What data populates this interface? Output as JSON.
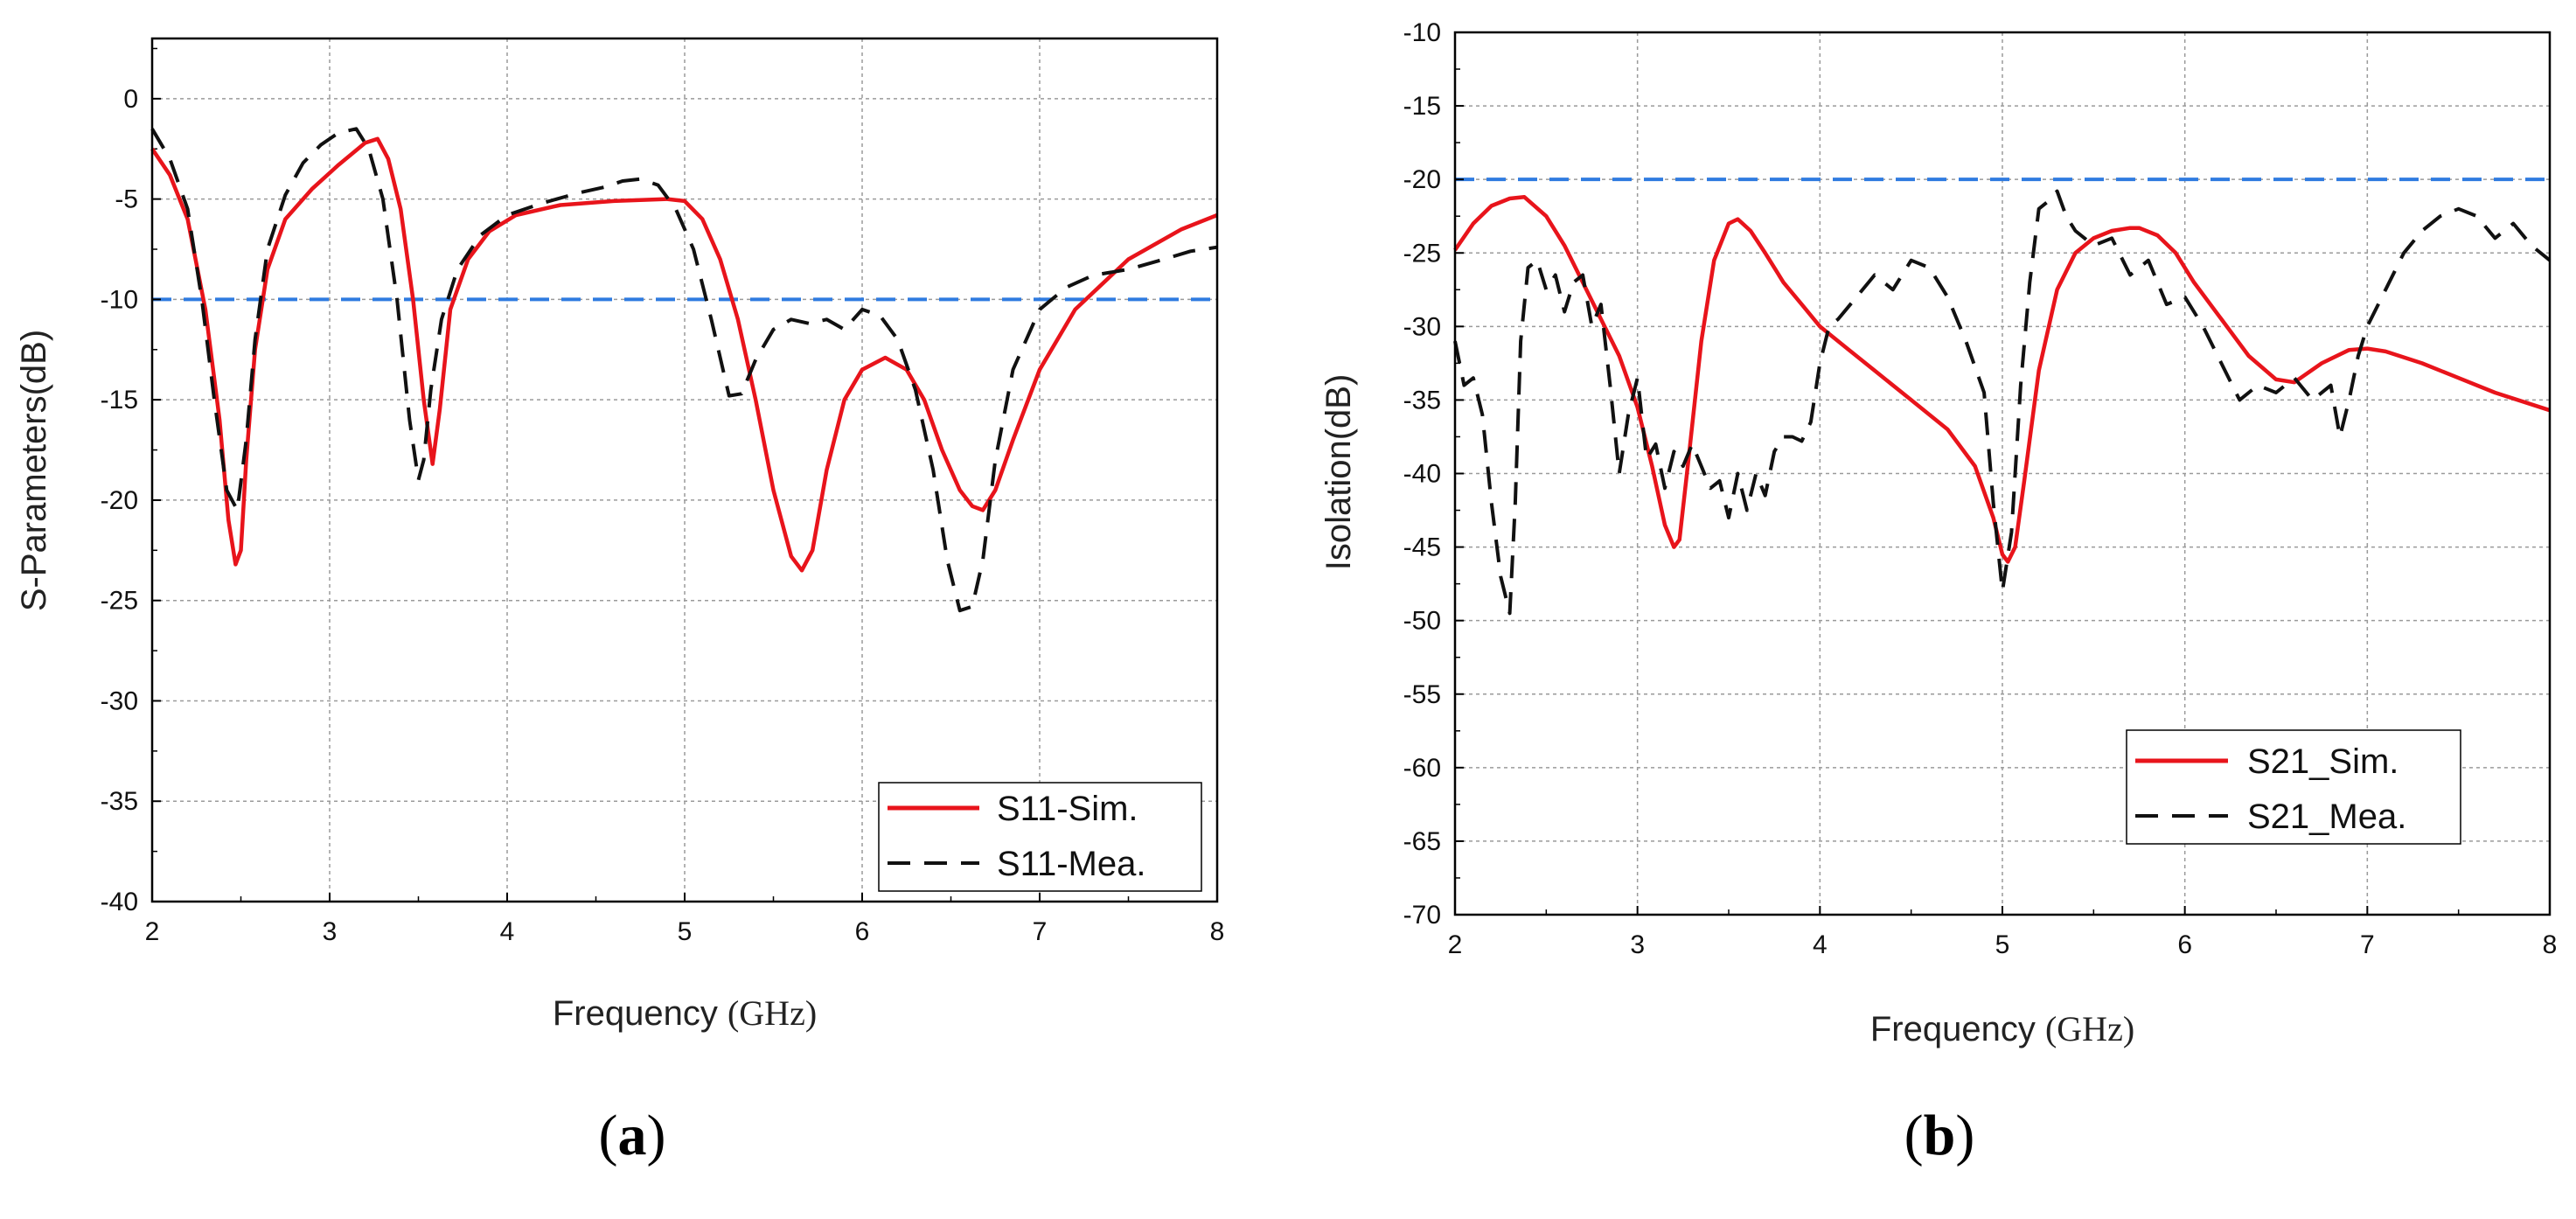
{
  "chart_data": [
    {
      "type": "line",
      "panel": "a",
      "panel_label": "a",
      "xlabel": "Frequency",
      "xunit": "(GHz)",
      "ylabel": "S-Parameters(dB)",
      "xlim": [
        2,
        8
      ],
      "ylim": [
        -40,
        3
      ],
      "xticks": [
        2,
        3,
        4,
        5,
        6,
        7,
        8
      ],
      "yticks": [
        0,
        -5,
        -10,
        -15,
        -20,
        -25,
        -30,
        -35,
        -40
      ],
      "grid": true,
      "legend_position": "bottom-right",
      "threshold": {
        "y": -10,
        "color": "#2f7be0"
      },
      "series": [
        {
          "name": "S11-Sim.",
          "color": "#e8141b",
          "dash": "solid",
          "x": [
            2.0,
            2.1,
            2.2,
            2.3,
            2.38,
            2.43,
            2.47,
            2.5,
            2.53,
            2.58,
            2.65,
            2.75,
            2.9,
            3.05,
            3.2,
            3.27,
            3.33,
            3.4,
            3.47,
            3.53,
            3.58,
            3.62,
            3.68,
            3.78,
            3.9,
            4.05,
            4.3,
            4.6,
            4.9,
            5.0,
            5.1,
            5.2,
            5.3,
            5.4,
            5.5,
            5.6,
            5.66,
            5.72,
            5.8,
            5.9,
            6.0,
            6.13,
            6.25,
            6.35,
            6.45,
            6.55,
            6.62,
            6.68,
            6.75,
            6.85,
            7.0,
            7.2,
            7.5,
            7.8,
            8.0
          ],
          "y": [
            -2.5,
            -3.8,
            -6.0,
            -10.5,
            -16.0,
            -21.0,
            -23.2,
            -22.5,
            -18.0,
            -12.5,
            -8.5,
            -6.0,
            -4.5,
            -3.3,
            -2.2,
            -2.0,
            -3.0,
            -5.5,
            -10.0,
            -15.0,
            -18.2,
            -15.5,
            -10.5,
            -8.0,
            -6.6,
            -5.8,
            -5.3,
            -5.1,
            -5.0,
            -5.1,
            -6.0,
            -8.0,
            -11.0,
            -15.0,
            -19.5,
            -22.8,
            -23.5,
            -22.5,
            -18.5,
            -15.0,
            -13.5,
            -12.9,
            -13.5,
            -15.0,
            -17.5,
            -19.5,
            -20.3,
            -20.5,
            -19.5,
            -17.0,
            -13.5,
            -10.5,
            -8.0,
            -6.5,
            -5.8
          ]
        },
        {
          "name": "S11-Mea.",
          "color": "#111111",
          "dash": "dashed",
          "x": [
            2.0,
            2.1,
            2.2,
            2.28,
            2.35,
            2.42,
            2.48,
            2.53,
            2.58,
            2.65,
            2.75,
            2.85,
            2.95,
            3.05,
            3.15,
            3.22,
            3.3,
            3.38,
            3.45,
            3.5,
            3.53,
            3.57,
            3.63,
            3.72,
            3.85,
            4.0,
            4.2,
            4.4,
            4.55,
            4.65,
            4.75,
            4.85,
            4.95,
            5.05,
            5.15,
            5.25,
            5.32,
            5.4,
            5.5,
            5.6,
            5.7,
            5.8,
            5.9,
            6.0,
            6.1,
            6.2,
            6.3,
            6.4,
            6.48,
            6.55,
            6.62,
            6.68,
            6.75,
            6.85,
            7.0,
            7.15,
            7.3,
            7.5,
            7.7,
            7.85,
            8.0
          ],
          "y": [
            -1.5,
            -3.0,
            -5.5,
            -10.0,
            -15.0,
            -19.5,
            -20.5,
            -17.0,
            -12.0,
            -7.5,
            -4.8,
            -3.2,
            -2.3,
            -1.7,
            -1.5,
            -2.5,
            -5.0,
            -10.0,
            -16.0,
            -19.0,
            -18.0,
            -14.5,
            -11.0,
            -8.5,
            -6.8,
            -5.8,
            -5.2,
            -4.7,
            -4.4,
            -4.1,
            -4.0,
            -4.3,
            -5.5,
            -7.5,
            -11.0,
            -14.8,
            -14.7,
            -13.0,
            -11.5,
            -11.0,
            -11.2,
            -11.0,
            -11.5,
            -10.5,
            -10.8,
            -12.0,
            -14.5,
            -18.5,
            -23.0,
            -25.5,
            -25.3,
            -23.0,
            -18.0,
            -13.5,
            -10.5,
            -9.4,
            -8.8,
            -8.5,
            -8.0,
            -7.6,
            -7.4
          ]
        }
      ],
      "legend": [
        "S11-Sim.",
        "S11-Mea."
      ],
      "ytick_labels": [
        "0",
        "-5",
        "-10",
        "-15",
        "-20",
        "-25",
        "-30",
        "-35",
        "-40"
      ],
      "xtick_labels": [
        "2",
        "3",
        "4",
        "5",
        "6",
        "7",
        "8"
      ]
    },
    {
      "type": "line",
      "panel": "b",
      "panel_label": "b",
      "xlabel": "Frequency",
      "xunit": "(GHz)",
      "ylabel": "Isolation(dB)",
      "xlim": [
        2,
        8
      ],
      "ylim": [
        -70,
        -10
      ],
      "xticks": [
        2,
        3,
        4,
        5,
        6,
        7,
        8
      ],
      "yticks": [
        -10,
        -15,
        -20,
        -25,
        -30,
        -35,
        -40,
        -45,
        -50,
        -55,
        -60,
        -65,
        -70
      ],
      "grid": true,
      "legend_position": "middle-right",
      "threshold": {
        "y": -20,
        "color": "#2f7be0"
      },
      "series": [
        {
          "name": "S21_Sim.",
          "color": "#e8141b",
          "dash": "solid",
          "x": [
            2.0,
            2.1,
            2.2,
            2.3,
            2.38,
            2.5,
            2.6,
            2.7,
            2.8,
            2.9,
            3.0,
            3.08,
            3.15,
            3.2,
            3.23,
            3.28,
            3.35,
            3.42,
            3.5,
            3.55,
            3.62,
            3.7,
            3.8,
            3.9,
            4.0,
            4.15,
            4.3,
            4.5,
            4.7,
            4.85,
            4.95,
            5.0,
            5.03,
            5.07,
            5.12,
            5.2,
            5.3,
            5.4,
            5.5,
            5.6,
            5.7,
            5.75,
            5.85,
            5.95,
            6.05,
            6.2,
            6.35,
            6.5,
            6.6,
            6.75,
            6.9,
            7.0,
            7.1,
            7.3,
            7.5,
            7.7,
            8.0
          ],
          "y": [
            -24.8,
            -23.0,
            -21.8,
            -21.3,
            -21.2,
            -22.5,
            -24.5,
            -27.0,
            -29.5,
            -32.0,
            -35.5,
            -39.5,
            -43.5,
            -45.0,
            -44.5,
            -39.0,
            -31.0,
            -25.5,
            -23.0,
            -22.7,
            -23.5,
            -25.0,
            -27.0,
            -28.5,
            -30.0,
            -31.5,
            -33.0,
            -35.0,
            -37.0,
            -39.5,
            -43.0,
            -45.5,
            -46.0,
            -45.0,
            -40.5,
            -33.0,
            -27.5,
            -25.0,
            -24.0,
            -23.5,
            -23.3,
            -23.3,
            -23.8,
            -25.0,
            -27.0,
            -29.5,
            -32.0,
            -33.6,
            -33.8,
            -32.5,
            -31.6,
            -31.5,
            -31.7,
            -32.5,
            -33.5,
            -34.5,
            -35.7
          ]
        },
        {
          "name": "S21_Mea.",
          "color": "#111111",
          "dash": "dashed",
          "x": [
            2.0,
            2.05,
            2.1,
            2.15,
            2.2,
            2.25,
            2.3,
            2.33,
            2.36,
            2.4,
            2.45,
            2.5,
            2.55,
            2.6,
            2.65,
            2.7,
            2.75,
            2.8,
            2.85,
            2.9,
            2.95,
            3.0,
            3.05,
            3.1,
            3.15,
            3.2,
            3.25,
            3.3,
            3.35,
            3.4,
            3.45,
            3.5,
            3.55,
            3.6,
            3.65,
            3.7,
            3.75,
            3.8,
            3.85,
            3.9,
            3.95,
            4.0,
            4.05,
            4.1,
            4.2,
            4.3,
            4.4,
            4.5,
            4.6,
            4.7,
            4.8,
            4.9,
            4.95,
            5.0,
            5.05,
            5.1,
            5.15,
            5.2,
            5.25,
            5.3,
            5.35,
            5.4,
            5.5,
            5.6,
            5.7,
            5.8,
            5.9,
            6.0,
            6.1,
            6.2,
            6.3,
            6.4,
            6.5,
            6.6,
            6.7,
            6.8,
            6.85,
            6.9,
            6.95,
            7.0,
            7.1,
            7.2,
            7.3,
            7.4,
            7.5,
            7.6,
            7.7,
            7.8,
            7.9,
            8.0
          ],
          "y": [
            -31.0,
            -34.0,
            -33.5,
            -36.0,
            -42.0,
            -47.0,
            -49.5,
            -42.0,
            -31.0,
            -26.0,
            -25.5,
            -27.5,
            -26.5,
            -29.0,
            -27.0,
            -26.5,
            -30.0,
            -28.5,
            -34.0,
            -40.0,
            -36.0,
            -33.5,
            -39.0,
            -38.0,
            -41.0,
            -38.5,
            -39.5,
            -38.0,
            -39.5,
            -41.0,
            -40.5,
            -43.0,
            -40.0,
            -42.5,
            -40.0,
            -41.5,
            -38.5,
            -37.5,
            -37.5,
            -37.8,
            -36.5,
            -32.5,
            -30.0,
            -29.5,
            -28.0,
            -26.5,
            -27.5,
            -25.5,
            -26.0,
            -28.0,
            -31.0,
            -34.5,
            -42.0,
            -48.0,
            -44.0,
            -34.0,
            -27.0,
            -22.0,
            -21.5,
            -20.8,
            -22.5,
            -23.5,
            -24.5,
            -24.0,
            -26.5,
            -25.5,
            -28.5,
            -28.0,
            -30.0,
            -32.5,
            -35.0,
            -34.0,
            -34.5,
            -33.5,
            -35.0,
            -34.0,
            -37.5,
            -35.0,
            -32.0,
            -30.0,
            -27.5,
            -25.0,
            -23.5,
            -22.5,
            -22.0,
            -22.5,
            -24.0,
            -23.0,
            -24.5,
            -25.5
          ]
        }
      ],
      "legend": [
        "S21_Sim.",
        "S21_Mea."
      ],
      "ytick_labels": [
        "-10",
        "-15",
        "-20",
        "-25",
        "-30",
        "-35",
        "-40",
        "-45",
        "-50",
        "-55",
        "-60",
        "-65",
        "-70"
      ],
      "xtick_labels": [
        "2",
        "3",
        "4",
        "5",
        "6",
        "7",
        "8"
      ]
    }
  ]
}
